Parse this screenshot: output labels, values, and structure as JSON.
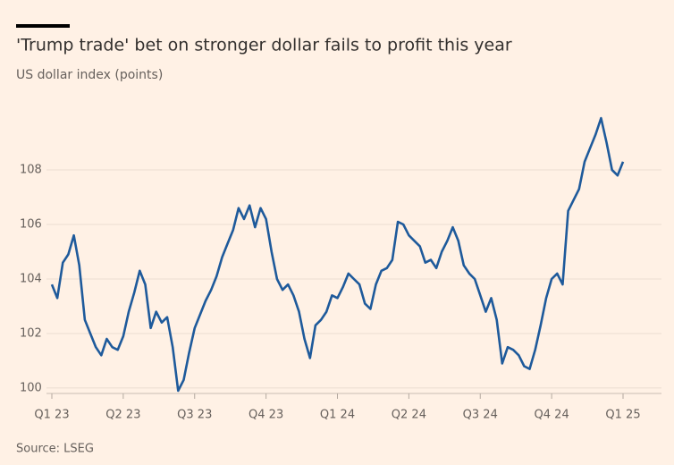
{
  "chart_data": {
    "type": "line",
    "title": "'Trump trade' bet on stronger dollar fails to profit this year",
    "subtitle": "US dollar index (points)",
    "source": "Source: LSEG",
    "categories": [
      "Q1 23",
      null,
      null,
      null,
      null,
      null,
      null,
      null,
      null,
      null,
      null,
      null,
      null,
      "Q2 23",
      null,
      null,
      null,
      null,
      null,
      null,
      null,
      null,
      null,
      null,
      null,
      null,
      "Q3 23",
      null,
      null,
      null,
      null,
      null,
      null,
      null,
      null,
      null,
      null,
      null,
      null,
      "Q4 23",
      null,
      null,
      null,
      null,
      null,
      null,
      null,
      null,
      null,
      null,
      null,
      null,
      "Q1 24",
      null,
      null,
      null,
      null,
      null,
      null,
      null,
      null,
      null,
      null,
      null,
      null,
      "Q2 24",
      null,
      null,
      null,
      null,
      null,
      null,
      null,
      null,
      null,
      null,
      null,
      null,
      "Q3 24",
      null,
      null,
      null,
      null,
      null,
      null,
      null,
      null,
      null,
      null,
      null,
      null,
      "Q4 24",
      null,
      null,
      null,
      null,
      null,
      null,
      null,
      null,
      null,
      null,
      null,
      null,
      "Q1 25"
    ],
    "values": [
      103.8,
      103.3,
      104.6,
      104.9,
      105.6,
      104.5,
      102.5,
      102.0,
      101.5,
      101.2,
      101.8,
      101.5,
      101.4,
      101.9,
      102.8,
      103.5,
      104.3,
      103.8,
      102.2,
      102.8,
      102.4,
      102.6,
      101.5,
      99.9,
      100.3,
      101.3,
      102.2,
      102.7,
      103.2,
      103.6,
      104.1,
      104.8,
      105.3,
      105.8,
      106.6,
      106.2,
      106.7,
      105.9,
      106.6,
      106.2,
      105.0,
      104.0,
      103.6,
      103.8,
      103.4,
      102.8,
      101.8,
      101.1,
      102.3,
      102.5,
      102.8,
      103.4,
      103.3,
      103.7,
      104.2,
      104.0,
      103.8,
      103.1,
      102.9,
      103.8,
      104.3,
      104.4,
      104.7,
      106.1,
      106.0,
      105.6,
      105.4,
      105.2,
      104.6,
      104.7,
      104.4,
      105.0,
      105.4,
      105.9,
      105.4,
      104.5,
      104.2,
      104.0,
      103.4,
      102.8,
      103.3,
      102.5,
      100.9,
      101.5,
      101.4,
      101.2,
      100.8,
      100.7,
      101.4,
      102.3,
      103.3,
      104.0,
      104.2,
      103.8,
      106.5,
      106.9,
      107.3,
      108.3,
      108.8,
      109.3,
      109.9,
      109.0,
      108.0,
      107.8,
      108.3
    ],
    "color": "#1e5a9b",
    "ylim": [
      99.8,
      110.2
    ],
    "yticks": [
      100,
      102,
      104,
      106,
      108
    ],
    "grid": true
  }
}
